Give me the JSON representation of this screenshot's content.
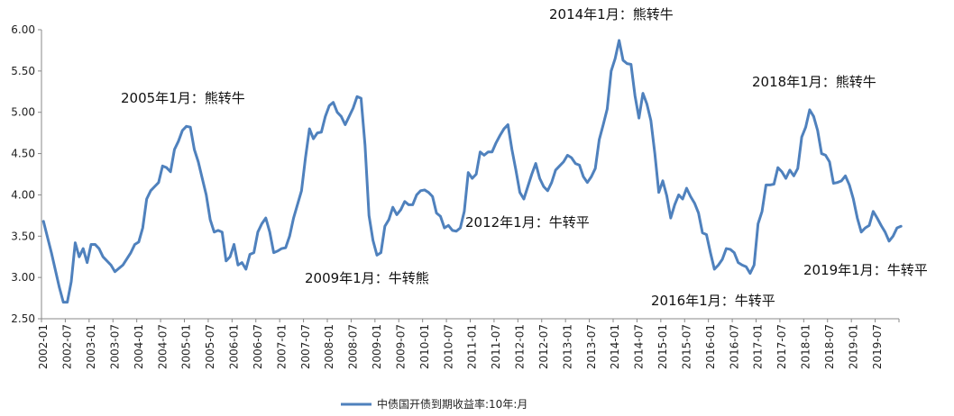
{
  "chart_data": {
    "type": "line",
    "title": "",
    "xlabel": "",
    "ylabel": "",
    "ylim": [
      2.5,
      6.0
    ],
    "yticks": [
      "2.50",
      "3.00",
      "3.50",
      "4.00",
      "4.50",
      "5.00",
      "5.50",
      "6.00"
    ],
    "xticks": [
      "2002-01",
      "2002-07",
      "2003-01",
      "2003-07",
      "2004-01",
      "2004-07",
      "2005-01",
      "2005-07",
      "2006-01",
      "2006-07",
      "2007-01",
      "2007-07",
      "2008-01",
      "2008-07",
      "2009-01",
      "2009-07",
      "2010-01",
      "2010-07",
      "2011-01",
      "2011-07",
      "2012-01",
      "2012-07",
      "2013-01",
      "2013-07",
      "2014-01",
      "2014-07",
      "2015-01",
      "2015-07",
      "2016-01",
      "2016-07",
      "2017-01",
      "2017-07",
      "2018-01",
      "2018-07",
      "2019-01",
      "2019-07"
    ],
    "grid": false,
    "legend_position": "bottom",
    "series": [
      {
        "name": "中债国开债到期收益率:10年:月",
        "color": "#4F81BD",
        "values": [
          [
            0,
            3.68
          ],
          [
            2,
            3.3
          ],
          [
            4,
            2.88
          ],
          [
            5,
            2.7
          ],
          [
            6,
            2.7
          ],
          [
            7,
            2.95
          ],
          [
            8,
            3.42
          ],
          [
            9,
            3.25
          ],
          [
            10,
            3.35
          ],
          [
            11,
            3.18
          ],
          [
            12,
            3.4
          ],
          [
            13,
            3.4
          ],
          [
            14,
            3.35
          ],
          [
            15,
            3.25
          ],
          [
            17,
            3.15
          ],
          [
            18,
            3.07
          ],
          [
            20,
            3.15
          ],
          [
            22,
            3.3
          ],
          [
            23,
            3.4
          ],
          [
            24,
            3.43
          ],
          [
            25,
            3.6
          ],
          [
            26,
            3.95
          ],
          [
            27,
            4.05
          ],
          [
            28,
            4.1
          ],
          [
            29,
            4.15
          ],
          [
            30,
            4.35
          ],
          [
            31,
            4.33
          ],
          [
            32,
            4.28
          ],
          [
            33,
            4.55
          ],
          [
            34,
            4.65
          ],
          [
            35,
            4.78
          ],
          [
            36,
            4.83
          ],
          [
            37,
            4.82
          ],
          [
            38,
            4.55
          ],
          [
            39,
            4.4
          ],
          [
            40,
            4.2
          ],
          [
            41,
            4.0
          ],
          [
            42,
            3.7
          ],
          [
            43,
            3.55
          ],
          [
            44,
            3.57
          ],
          [
            45,
            3.55
          ],
          [
            46,
            3.2
          ],
          [
            47,
            3.25
          ],
          [
            48,
            3.4
          ],
          [
            49,
            3.15
          ],
          [
            50,
            3.18
          ],
          [
            51,
            3.1
          ],
          [
            52,
            3.28
          ],
          [
            53,
            3.3
          ],
          [
            54,
            3.55
          ],
          [
            55,
            3.65
          ],
          [
            56,
            3.72
          ],
          [
            57,
            3.55
          ],
          [
            58,
            3.3
          ],
          [
            59,
            3.32
          ],
          [
            60,
            3.35
          ],
          [
            61,
            3.36
          ],
          [
            62,
            3.5
          ],
          [
            63,
            3.72
          ],
          [
            65,
            4.05
          ],
          [
            66,
            4.45
          ],
          [
            67,
            4.8
          ],
          [
            68,
            4.68
          ],
          [
            69,
            4.75
          ],
          [
            70,
            4.76
          ],
          [
            71,
            4.95
          ],
          [
            72,
            5.08
          ],
          [
            73,
            5.12
          ],
          [
            74,
            5.0
          ],
          [
            75,
            4.95
          ],
          [
            76,
            4.85
          ],
          [
            77,
            4.95
          ],
          [
            78,
            5.05
          ],
          [
            79,
            5.19
          ],
          [
            80,
            5.17
          ],
          [
            81,
            4.6
          ],
          [
            82,
            3.75
          ],
          [
            83,
            3.45
          ],
          [
            84,
            3.27
          ],
          [
            85,
            3.3
          ],
          [
            86,
            3.62
          ],
          [
            87,
            3.7
          ],
          [
            88,
            3.85
          ],
          [
            89,
            3.76
          ],
          [
            90,
            3.82
          ],
          [
            91,
            3.92
          ],
          [
            92,
            3.88
          ],
          [
            93,
            3.88
          ],
          [
            94,
            4.0
          ],
          [
            95,
            4.05
          ],
          [
            96,
            4.06
          ],
          [
            97,
            4.03
          ],
          [
            98,
            3.98
          ],
          [
            99,
            3.78
          ],
          [
            100,
            3.74
          ],
          [
            101,
            3.6
          ],
          [
            102,
            3.63
          ],
          [
            103,
            3.57
          ],
          [
            104,
            3.56
          ],
          [
            105,
            3.6
          ],
          [
            106,
            3.8
          ],
          [
            107,
            4.27
          ],
          [
            108,
            4.2
          ],
          [
            109,
            4.25
          ],
          [
            110,
            4.52
          ],
          [
            111,
            4.48
          ],
          [
            112,
            4.52
          ],
          [
            113,
            4.52
          ],
          [
            114,
            4.63
          ],
          [
            115,
            4.72
          ],
          [
            116,
            4.8
          ],
          [
            117,
            4.85
          ],
          [
            118,
            4.55
          ],
          [
            119,
            4.3
          ],
          [
            120,
            4.03
          ],
          [
            121,
            3.95
          ],
          [
            122,
            4.1
          ],
          [
            123,
            4.25
          ],
          [
            124,
            4.38
          ],
          [
            125,
            4.2
          ],
          [
            126,
            4.1
          ],
          [
            127,
            4.05
          ],
          [
            128,
            4.15
          ],
          [
            129,
            4.3
          ],
          [
            130,
            4.35
          ],
          [
            131,
            4.4
          ],
          [
            132,
            4.48
          ],
          [
            133,
            4.45
          ],
          [
            134,
            4.38
          ],
          [
            135,
            4.36
          ],
          [
            136,
            4.22
          ],
          [
            137,
            4.15
          ],
          [
            138,
            4.22
          ],
          [
            139,
            4.32
          ],
          [
            140,
            4.67
          ],
          [
            141,
            4.85
          ],
          [
            142,
            5.04
          ],
          [
            143,
            5.5
          ],
          [
            144,
            5.65
          ],
          [
            145,
            5.87
          ],
          [
            146,
            5.63
          ],
          [
            147,
            5.59
          ],
          [
            148,
            5.58
          ],
          [
            149,
            5.2
          ],
          [
            150,
            4.93
          ],
          [
            151,
            5.23
          ],
          [
            152,
            5.1
          ],
          [
            153,
            4.9
          ],
          [
            154,
            4.5
          ],
          [
            155,
            4.03
          ],
          [
            156,
            4.17
          ],
          [
            157,
            3.99
          ],
          [
            158,
            3.72
          ],
          [
            159,
            3.88
          ],
          [
            160,
            4.0
          ],
          [
            161,
            3.95
          ],
          [
            162,
            4.08
          ],
          [
            163,
            3.98
          ],
          [
            164,
            3.9
          ],
          [
            165,
            3.78
          ],
          [
            166,
            3.54
          ],
          [
            167,
            3.52
          ],
          [
            168,
            3.3
          ],
          [
            169,
            3.1
          ],
          [
            170,
            3.15
          ],
          [
            171,
            3.22
          ],
          [
            172,
            3.35
          ],
          [
            173,
            3.34
          ],
          [
            174,
            3.3
          ],
          [
            175,
            3.18
          ],
          [
            176,
            3.15
          ],
          [
            177,
            3.13
          ],
          [
            178,
            3.05
          ],
          [
            179,
            3.15
          ],
          [
            180,
            3.65
          ],
          [
            181,
            3.8
          ],
          [
            182,
            4.12
          ],
          [
            183,
            4.12
          ],
          [
            184,
            4.13
          ],
          [
            185,
            4.33
          ],
          [
            186,
            4.28
          ],
          [
            187,
            4.2
          ],
          [
            188,
            4.3
          ],
          [
            189,
            4.23
          ],
          [
            190,
            4.32
          ],
          [
            191,
            4.7
          ],
          [
            192,
            4.82
          ],
          [
            193,
            5.03
          ],
          [
            194,
            4.95
          ],
          [
            195,
            4.78
          ],
          [
            196,
            4.5
          ],
          [
            197,
            4.48
          ],
          [
            198,
            4.4
          ],
          [
            199,
            4.14
          ],
          [
            200,
            4.15
          ],
          [
            201,
            4.17
          ],
          [
            202,
            4.23
          ],
          [
            203,
            4.12
          ],
          [
            204,
            3.95
          ],
          [
            205,
            3.72
          ],
          [
            206,
            3.55
          ],
          [
            207,
            3.6
          ],
          [
            208,
            3.63
          ],
          [
            209,
            3.8
          ],
          [
            210,
            3.72
          ],
          [
            211,
            3.63
          ],
          [
            212,
            3.55
          ],
          [
            213,
            3.44
          ],
          [
            214,
            3.5
          ],
          [
            215,
            3.6
          ],
          [
            216,
            3.62
          ]
        ]
      }
    ],
    "annotations": [
      {
        "text": "2005年1月：熊转牛"
      },
      {
        "text": "2009年1月：牛转熊"
      },
      {
        "text": "2012年1月：牛转平"
      },
      {
        "text": "2014年1月：熊转牛"
      },
      {
        "text": "2016年1月：牛转平"
      },
      {
        "text": "2018年1月：熊转牛"
      },
      {
        "text": "2019年1月：牛转平"
      }
    ]
  }
}
